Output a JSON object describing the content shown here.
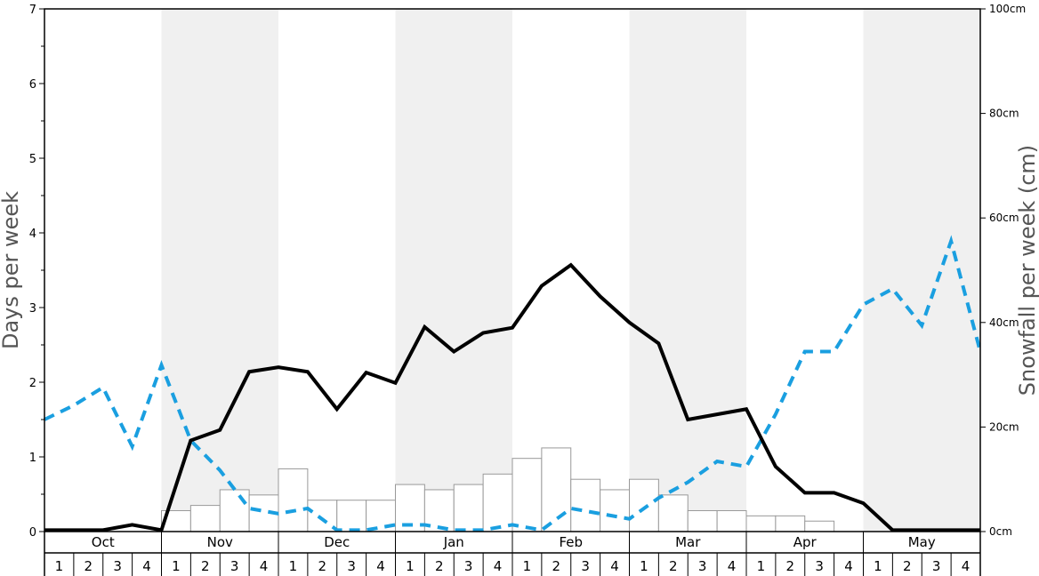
{
  "chart_data": {
    "type": "line",
    "xlabel": "",
    "ylabel": "Days per week",
    "y2label": "Snowfall per week (cm)",
    "ylim": [
      0,
      7
    ],
    "y2lim": [
      0,
      100
    ],
    "y_ticks": [
      "0",
      "1",
      "2",
      "3",
      "4",
      "5",
      "6",
      "7"
    ],
    "y2_ticks": [
      "0cm",
      "20cm",
      "40cm",
      "60cm",
      "80cm",
      "100cm"
    ],
    "months": [
      "Oct",
      "Nov",
      "Dec",
      "Jan",
      "Feb",
      "Mar",
      "Apr",
      "May"
    ],
    "week_labels": [
      "1",
      "2",
      "3",
      "4"
    ],
    "shaded_months": [
      "Nov",
      "Jan",
      "Mar",
      "May"
    ],
    "grid": false,
    "colors": {
      "days_line": "#000000",
      "dashed_line": "#1a9fe0",
      "bars_fill": "#ffffff",
      "bars_stroke": "#999999",
      "shade": "#f0f0f0"
    },
    "series": [
      {
        "kind": "line",
        "axis": "left",
        "values": [
          0.02,
          0.02,
          0.02,
          0.09,
          0.02,
          1.22,
          1.36,
          2.14,
          2.2,
          2.14,
          1.64,
          2.13,
          1.99,
          2.74,
          2.41,
          2.66,
          2.73,
          3.29,
          3.57,
          3.15,
          2.8,
          2.52,
          1.5,
          1.57,
          1.64,
          0.87,
          0.52,
          0.52,
          0.38,
          0.02,
          0.02,
          0.02,
          0.02
        ]
      },
      {
        "kind": "dashed",
        "axis": "left",
        "values": [
          1.5,
          1.69,
          1.93,
          1.14,
          2.23,
          1.22,
          0.82,
          0.31,
          0.24,
          0.31,
          0.02,
          0.02,
          0.09,
          0.09,
          0.02,
          0.02,
          0.09,
          0.02,
          0.31,
          0.24,
          0.17,
          0.45,
          0.66,
          0.94,
          0.87,
          1.57,
          2.41,
          2.41,
          3.04,
          3.25,
          2.76,
          3.89,
          2.41
        ]
      },
      {
        "kind": "bar",
        "axis": "right",
        "values": [
          0,
          0,
          0,
          0,
          4,
          5,
          8,
          7,
          12,
          6,
          6,
          6,
          9,
          8,
          9,
          11,
          14,
          16,
          10,
          8,
          10,
          7,
          4,
          4,
          3,
          3,
          2,
          0,
          0,
          0,
          0,
          0
        ]
      }
    ]
  }
}
